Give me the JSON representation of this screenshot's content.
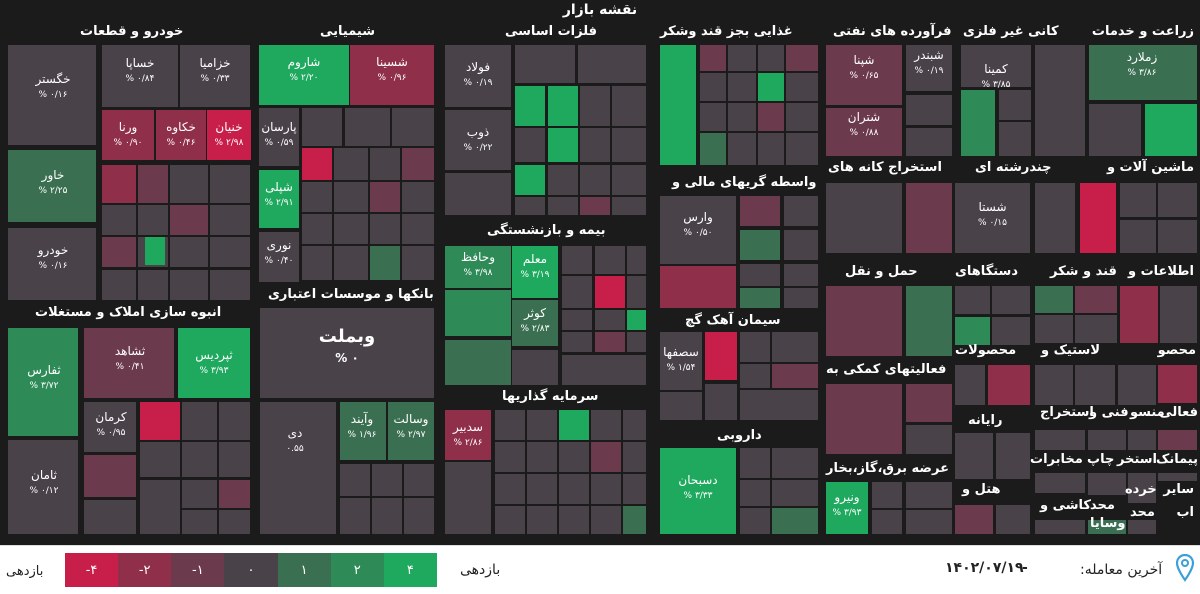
{
  "header": {
    "title": "نقشه بازار"
  },
  "colors": {
    "g4": "#1fa95e",
    "g2": "#2e8b57",
    "g1": "#3a6f52",
    "n0": "#494249",
    "r1": "#6b3a4d",
    "r2": "#8f2f4a",
    "r4": "#c71e4a",
    "gap": "#1b1b1b"
  },
  "chart_data": {
    "type": "heatmap",
    "title": "نقشه بازار",
    "sectors": [
      {
        "name": "زراعت و خدمات"
      },
      {
        "name": "کانی غیر فلزی"
      },
      {
        "name": "فرآورده های نفتی"
      },
      {
        "name": "غذایی بجز قند وشکر"
      },
      {
        "name": "فلزات اساسی"
      },
      {
        "name": "شیمیایی"
      },
      {
        "name": "خودرو و قطعات"
      },
      {
        "name": "ماشین آلات و"
      },
      {
        "name": "چندرشته ای"
      },
      {
        "name": "استخراج کانه های"
      },
      {
        "name": "واسطه گریهای مالی و"
      },
      {
        "name": "بیمه و بازنشستگی"
      },
      {
        "name": "بانکها و موسسات اعتباری"
      },
      {
        "name": "انبوه سازی املاک و مستغلات"
      },
      {
        "name": "اطلاعات و"
      },
      {
        "name": "قند و شکر"
      },
      {
        "name": "دستگاهای"
      },
      {
        "name": "حمل و نقل"
      },
      {
        "name": "سیمان آهک گچ"
      },
      {
        "name": "محصو"
      },
      {
        "name": "لاستیک و"
      },
      {
        "name": "محصولات"
      },
      {
        "name": "فعالیتهای کمکی به"
      },
      {
        "name": "سرمایه گذاریها"
      },
      {
        "name": "فعالی"
      },
      {
        "name": "منسو"
      },
      {
        "name": "فنی و"
      },
      {
        "name": "استخراج"
      },
      {
        "name": "رایانه"
      },
      {
        "name": "داروبی"
      },
      {
        "name": "پیمانک"
      },
      {
        "name": "استخر"
      },
      {
        "name": "چاپ"
      },
      {
        "name": "مخابرات"
      },
      {
        "name": "عرضه برق،گاز،بخار"
      },
      {
        "name": "سایر"
      },
      {
        "name": "خرده"
      },
      {
        "name": "اب"
      },
      {
        "name": "هتل و"
      },
      {
        "name": "محد"
      },
      {
        "name": "کاشی و"
      },
      {
        "name": "محد"
      },
      {
        "name": "وسایا"
      }
    ],
    "tiles": [
      {
        "symbol": "زملارد",
        "change": "۳/۸۶ %"
      },
      {
        "symbol": "کمینا",
        "change": "۳/۸۵ %"
      },
      {
        "symbol": "شپنا",
        "change": "۰/۶۵ %"
      },
      {
        "symbol": "شبندر",
        "change": "۰/۱۹ %"
      },
      {
        "symbol": "شتران",
        "change": "۰/۸۸ %"
      },
      {
        "symbol": "فولاد",
        "change": "۰/۱۹ %"
      },
      {
        "symbol": "ذوب",
        "change": "۰/۲۲ %"
      },
      {
        "symbol": "شسینا",
        "change": "۰/۹۶ %"
      },
      {
        "symbol": "شاروم",
        "change": "۲/۲۰ %"
      },
      {
        "symbol": "پارسان",
        "change": "۰/۵۹ %"
      },
      {
        "symbol": "شپلی",
        "change": "۲/۹۱ %"
      },
      {
        "symbol": "نوری",
        "change": "۰/۴۰ %"
      },
      {
        "symbol": "خگستر",
        "change": "۰/۱۶ %"
      },
      {
        "symbol": "خساپا",
        "change": "۰/۸۴ %"
      },
      {
        "symbol": "خزامیا",
        "change": "۰/۳۳ %"
      },
      {
        "symbol": "ورنا",
        "change": "۰/۹۰ %"
      },
      {
        "symbol": "خکاوه",
        "change": "۰/۴۶ %"
      },
      {
        "symbol": "خنیان",
        "change": "۲/۹۸ %"
      },
      {
        "symbol": "خاور",
        "change": "۲/۲۵ %"
      },
      {
        "symbol": "خودرو",
        "change": "۰/۱۶ %"
      },
      {
        "symbol": "شستا",
        "change": "۰/۱۵ %"
      },
      {
        "symbol": "وارس",
        "change": "۰/۵۰ %"
      },
      {
        "symbol": "وحافظ",
        "change": "۳/۹۸ %"
      },
      {
        "symbol": "معلم",
        "change": "۳/۱۹ %"
      },
      {
        "symbol": "کوثر",
        "change": "۲/۸۳ %"
      },
      {
        "symbol": "وبملت",
        "change": "۰ %"
      },
      {
        "symbol": "دی",
        "change": "۰.۵۵"
      },
      {
        "symbol": "وآیند",
        "change": "۱/۹۶ %"
      },
      {
        "symbol": "وسالت",
        "change": "۲/۹۷ %"
      },
      {
        "symbol": "ثفارس",
        "change": "۳/۷۲ %"
      },
      {
        "symbol": "ثشاهد",
        "change": "۰/۴۱ %"
      },
      {
        "symbol": "ثپردیس",
        "change": "۳/۹۳ %"
      },
      {
        "symbol": "کرمان",
        "change": "۰/۹۵ %"
      },
      {
        "symbol": "ثامان",
        "change": "۰/۱۲ %"
      },
      {
        "symbol": "سدبیر",
        "change": "۲/۸۶ %"
      },
      {
        "symbol": "سصفها",
        "change": "۱/۵۴ %"
      },
      {
        "symbol": "دسبحان",
        "change": "۳/۳۳ %"
      },
      {
        "symbol": "ونیرو",
        "change": "۳/۹۳ %"
      }
    ],
    "legend": {
      "title": "بازدهی",
      "steps": [
        "-۴",
        "-۲",
        "-۱",
        "۰",
        "۱",
        "۲",
        "۴"
      ]
    }
  },
  "footer": {
    "legend_title": "بازدهی",
    "change_label": "بازدهی",
    "last_trade_label": "آخرین معامله:",
    "last_trade_date": "۱۴۰۲/۰۷/۱۹",
    "dash": "-"
  }
}
